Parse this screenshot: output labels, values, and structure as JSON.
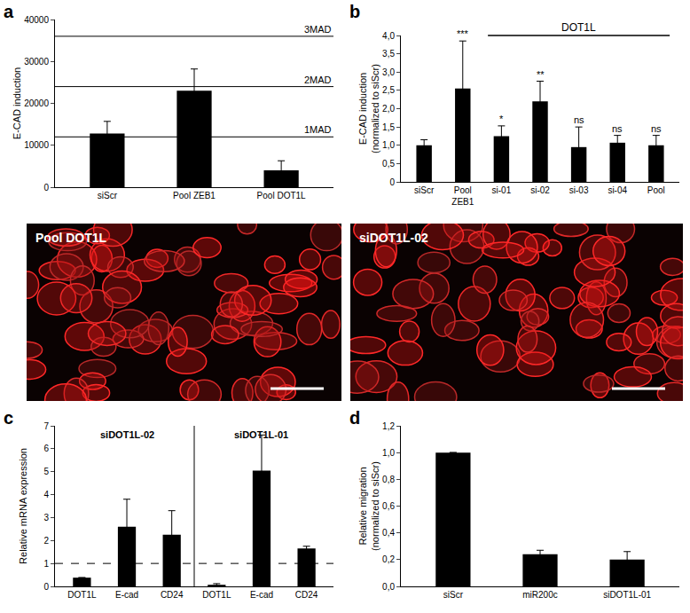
{
  "chart_data": [
    {
      "type": "bar",
      "title": "a",
      "categories": [
        "siScr",
        "Pool ZEB1",
        "Pool DOT1L"
      ],
      "values": [
        12800,
        23000,
        4000
      ],
      "errors": [
        2900,
        5200,
        2300
      ],
      "color": "#000000",
      "ylabel": "E-CAD induction",
      "ylim": [
        0,
        40000
      ],
      "yticks": [
        0,
        10000,
        20000,
        30000,
        40000
      ],
      "reference_lines": [
        {
          "value": 12000,
          "label": "1MAD"
        },
        {
          "value": 24000,
          "label": "2MAD"
        },
        {
          "value": 36000,
          "label": "3MAD"
        }
      ]
    },
    {
      "type": "bar",
      "title": "b",
      "categories": [
        "siScr",
        "Pool ZEB1",
        "si-01",
        "si-02",
        "si-03",
        "si-04",
        "Pool"
      ],
      "values": [
        1.0,
        2.55,
        1.25,
        2.2,
        0.95,
        1.07,
        1.0
      ],
      "errors": [
        0.15,
        1.3,
        0.28,
        0.55,
        0.55,
        0.2,
        0.27
      ],
      "significance": [
        null,
        "***",
        "*",
        "**",
        "ns",
        "ns",
        "ns"
      ],
      "group_label": {
        "text": "DOT1L",
        "from": 2,
        "to": 6
      },
      "color": "#000000",
      "ylabel": "E-CAD induction (normalized to siScr)",
      "ylim": [
        0,
        4
      ],
      "yticks": [
        0,
        {
          "value": 0.5,
          "label": "0,5"
        },
        {
          "value": 1,
          "label": "1,0"
        },
        {
          "value": 1.5,
          "label": "1,5"
        },
        {
          "value": 2,
          "label": "2,0"
        },
        {
          "value": 2.5,
          "label": "2,5"
        },
        {
          "value": 3,
          "label": "3,0"
        },
        {
          "value": 3.5,
          "label": "3,5"
        },
        {
          "value": 4,
          "label": "4,0"
        }
      ]
    },
    {
      "type": "bar",
      "title": "c",
      "categories": [
        "DOT1L",
        "E-cad",
        "CD24",
        "DOT1L",
        "E-cad",
        "CD24"
      ],
      "values": [
        0.38,
        2.6,
        2.25,
        0.07,
        5.05,
        1.65
      ],
      "errors": [
        0,
        1.2,
        1.05,
        0.05,
        1.55,
        0.1
      ],
      "groups": [
        {
          "label": "siDOT1L-02",
          "from": 0,
          "to": 2
        },
        {
          "label": "siDOT1L-01",
          "from": 3,
          "to": 5
        }
      ],
      "reference_lines": [
        {
          "value": 1,
          "line_style": "dashed"
        }
      ],
      "color": "#000000",
      "ylabel": "Relative mRNA expression",
      "ylim": [
        0,
        7
      ],
      "yticks": [
        0,
        1,
        2,
        3,
        4,
        5,
        6,
        7
      ]
    },
    {
      "type": "bar",
      "title": "d",
      "categories": [
        "siScr",
        "miR200c",
        "siDOT1L-01"
      ],
      "values": [
        1.0,
        0.24,
        0.2
      ],
      "errors": [
        0,
        0.03,
        0.06
      ],
      "color": "#000000",
      "ylabel": "Relative migration (normalized to siScr)",
      "ylim": [
        0,
        1.2
      ],
      "yticks": [
        {
          "value": 0,
          "label": "0,0"
        },
        {
          "value": 0.2,
          "label": "0,2"
        },
        {
          "value": 0.4,
          "label": "0,4"
        },
        {
          "value": 0.6,
          "label": "0,6"
        },
        {
          "value": 0.8,
          "label": "0,8"
        },
        {
          "value": 1,
          "label": "1,0"
        },
        {
          "value": 1.2,
          "label": "1,2"
        }
      ]
    }
  ],
  "images": [
    {
      "label": "Pool DOT1L"
    },
    {
      "label": "siDOT1L-02"
    }
  ]
}
